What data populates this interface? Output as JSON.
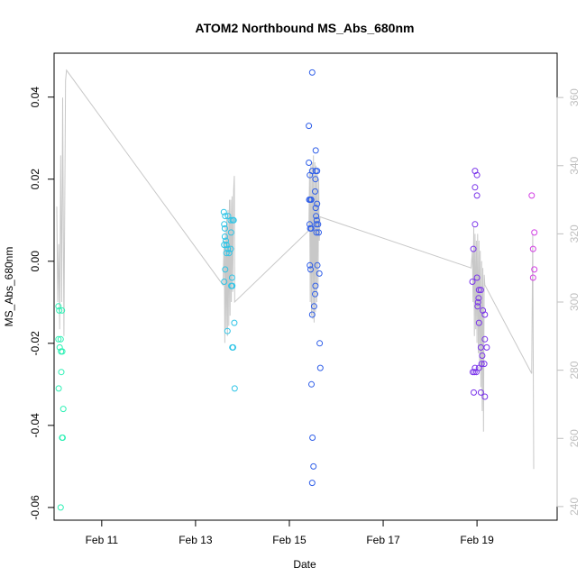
{
  "chart_data": {
    "type": "scatter",
    "title": "ATOM2 Northbound MS_Abs_680nm",
    "xlabel": "Date",
    "ylabel": "MS_Abs_680nm",
    "xlim": [
      "2024-02-09T23:38",
      "2024-02-20T17:00"
    ],
    "ylim": [
      -0.0631,
      0.0507
    ],
    "y2lim": [
      236.0,
      373.0
    ],
    "x_ticks": [
      {
        "date": "2024-02-11",
        "label": "Feb 11"
      },
      {
        "date": "2024-02-13",
        "label": "Feb 13"
      },
      {
        "date": "2024-02-15",
        "label": "Feb 15"
      },
      {
        "date": "2024-02-17",
        "label": "Feb 17"
      },
      {
        "date": "2024-02-19",
        "label": "Feb 19"
      }
    ],
    "y_ticks": [
      -0.06,
      -0.04,
      -0.02,
      0.0,
      0.02,
      0.04
    ],
    "y_tick_labels": [
      "-0.06",
      "-0.04",
      "-0.02",
      "0.00",
      "0.02",
      "0.04"
    ],
    "y2_ticks": [
      240,
      260,
      280,
      300,
      320,
      340,
      360
    ],
    "grid": false,
    "legend": "none",
    "series": [
      {
        "color": "#2cf0b4",
        "points": [
          [
            "2024-02-10T01:50",
            -0.011
          ],
          [
            "2024-02-10T01:50",
            -0.019
          ],
          [
            "2024-02-10T02:15",
            -0.012
          ],
          [
            "2024-02-10T02:30",
            -0.021
          ],
          [
            "2024-02-10T03:00",
            -0.019
          ],
          [
            "2024-02-10T03:10",
            -0.022
          ],
          [
            "2024-02-10T02:00",
            -0.031
          ],
          [
            "2024-02-10T03:40",
            -0.012
          ],
          [
            "2024-02-10T03:50",
            -0.022
          ],
          [
            "2024-02-10T03:20",
            -0.027
          ],
          [
            "2024-02-10T04:20",
            -0.036
          ],
          [
            "2024-02-10T03:45",
            -0.043
          ],
          [
            "2024-02-10T04:00",
            -0.043
          ],
          [
            "2024-02-10T03:00",
            -0.06
          ]
        ]
      },
      {
        "color": "#2ec4e6",
        "points": [
          [
            "2024-02-13T14:30",
            0.012
          ],
          [
            "2024-02-13T14:40",
            0.009
          ],
          [
            "2024-02-13T15:10",
            0.011
          ],
          [
            "2024-02-13T15:00",
            0.008
          ],
          [
            "2024-02-13T15:00",
            0.006
          ],
          [
            "2024-02-13T14:40",
            0.004
          ],
          [
            "2024-02-13T15:30",
            0.005
          ],
          [
            "2024-02-13T15:50",
            0.004
          ],
          [
            "2024-02-13T16:30",
            0.003
          ],
          [
            "2024-02-13T15:50",
            0.002
          ],
          [
            "2024-02-13T17:10",
            0.002
          ],
          [
            "2024-02-13T16:40",
            0.011
          ],
          [
            "2024-02-13T18:00",
            0.01
          ],
          [
            "2024-02-13T19:00",
            0.01
          ],
          [
            "2024-02-13T19:30",
            0.01
          ],
          [
            "2024-02-13T18:10",
            0.007
          ],
          [
            "2024-02-13T18:00",
            0.003
          ],
          [
            "2024-02-13T15:10",
            -0.002
          ],
          [
            "2024-02-13T14:40",
            -0.005
          ],
          [
            "2024-02-13T18:40",
            -0.004
          ],
          [
            "2024-02-13T18:20",
            -0.006
          ],
          [
            "2024-02-13T18:50",
            -0.006
          ],
          [
            "2024-02-13T19:50",
            -0.015
          ],
          [
            "2024-02-13T16:20",
            -0.017
          ],
          [
            "2024-02-13T18:50",
            -0.021
          ],
          [
            "2024-02-13T19:10",
            -0.021
          ],
          [
            "2024-02-13T20:00",
            -0.031
          ]
        ]
      },
      {
        "color": "#2f5ee8",
        "points": [
          [
            "2024-02-15T10:00",
            0.033
          ],
          [
            "2024-02-15T10:00",
            0.024
          ],
          [
            "2024-02-15T10:30",
            0.021
          ],
          [
            "2024-02-15T11:40",
            0.046
          ],
          [
            "2024-02-15T11:40",
            0.022
          ],
          [
            "2024-02-15T13:30",
            0.027
          ],
          [
            "2024-02-15T13:30",
            0.022
          ],
          [
            "2024-02-15T14:10",
            0.022
          ],
          [
            "2024-02-15T13:20",
            0.02
          ],
          [
            "2024-02-15T13:10",
            0.017
          ],
          [
            "2024-02-15T10:10",
            0.015
          ],
          [
            "2024-02-15T10:40",
            0.015
          ],
          [
            "2024-02-15T11:10",
            0.015
          ],
          [
            "2024-02-15T14:10",
            0.014
          ],
          [
            "2024-02-15T13:30",
            0.013
          ],
          [
            "2024-02-15T13:40",
            0.011
          ],
          [
            "2024-02-15T14:00",
            0.01
          ],
          [
            "2024-02-15T13:50",
            0.009
          ],
          [
            "2024-02-15T10:20",
            0.009
          ],
          [
            "2024-02-15T10:40",
            0.008
          ],
          [
            "2024-02-15T14:40",
            0.009
          ],
          [
            "2024-02-15T13:50",
            0.007
          ],
          [
            "2024-02-15T11:10",
            0.008
          ],
          [
            "2024-02-15T15:00",
            0.007
          ],
          [
            "2024-02-15T10:30",
            -0.001
          ],
          [
            "2024-02-15T10:50",
            -0.002
          ],
          [
            "2024-02-15T14:20",
            -0.001
          ],
          [
            "2024-02-15T15:20",
            -0.003
          ],
          [
            "2024-02-15T13:20",
            -0.006
          ],
          [
            "2024-02-15T13:10",
            -0.008
          ],
          [
            "2024-02-15T12:40",
            -0.011
          ],
          [
            "2024-02-15T11:40",
            -0.013
          ],
          [
            "2024-02-15T15:30",
            -0.02
          ],
          [
            "2024-02-15T15:50",
            -0.026
          ],
          [
            "2024-02-15T11:20",
            -0.03
          ],
          [
            "2024-02-15T11:50",
            -0.043
          ],
          [
            "2024-02-15T12:20",
            -0.05
          ],
          [
            "2024-02-15T11:40",
            -0.054
          ]
        ]
      },
      {
        "color": "#7a34ea",
        "points": [
          [
            "2024-02-18T23:00",
            0.022
          ],
          [
            "2024-02-19T00:00",
            0.021
          ],
          [
            "2024-02-18T23:00",
            0.018
          ],
          [
            "2024-02-19T00:00",
            0.016
          ],
          [
            "2024-02-18T23:00",
            0.009
          ],
          [
            "2024-02-18T22:10",
            0.003
          ],
          [
            "2024-02-18T21:40",
            -0.005
          ],
          [
            "2024-02-19T00:00",
            -0.004
          ],
          [
            "2024-02-19T01:00",
            -0.007
          ],
          [
            "2024-02-19T02:00",
            -0.007
          ],
          [
            "2024-02-19T00:50",
            -0.009
          ],
          [
            "2024-02-19T00:30",
            -0.01
          ],
          [
            "2024-02-19T00:20",
            -0.011
          ],
          [
            "2024-02-19T03:00",
            -0.012
          ],
          [
            "2024-02-19T04:00",
            -0.013
          ],
          [
            "2024-02-19T01:00",
            -0.015
          ],
          [
            "2024-02-19T04:00",
            -0.019
          ],
          [
            "2024-02-19T02:00",
            -0.021
          ],
          [
            "2024-02-19T05:00",
            -0.021
          ],
          [
            "2024-02-19T02:40",
            -0.023
          ],
          [
            "2024-02-19T02:20",
            -0.025
          ],
          [
            "2024-02-19T03:40",
            -0.025
          ],
          [
            "2024-02-18T23:00",
            -0.026
          ],
          [
            "2024-02-19T01:00",
            -0.026
          ],
          [
            "2024-02-18T21:50",
            -0.027
          ],
          [
            "2024-02-18T22:40",
            -0.027
          ],
          [
            "2024-02-18T23:40",
            -0.027
          ],
          [
            "2024-02-18T22:20",
            -0.032
          ],
          [
            "2024-02-19T02:00",
            -0.032
          ],
          [
            "2024-02-19T04:00",
            -0.033
          ]
        ]
      },
      {
        "color": "#d23ee4",
        "points": [
          [
            "2024-02-20T04:00",
            0.016
          ],
          [
            "2024-02-20T05:20",
            0.007
          ],
          [
            "2024-02-20T04:40",
            0.003
          ],
          [
            "2024-02-20T05:20",
            -0.002
          ],
          [
            "2024-02-20T04:40",
            -0.004
          ]
        ]
      }
    ],
    "secondary_series": {
      "color": "#c8c8c8",
      "axis": "right",
      "points": [
        [
          "2024-02-10T01:00",
          328
        ],
        [
          "2024-02-10T01:30",
          300
        ],
        [
          "2024-02-10T02:00",
          317
        ],
        [
          "2024-02-10T02:30",
          292
        ],
        [
          "2024-02-10T03:00",
          343
        ],
        [
          "2024-02-10T03:30",
          300
        ],
        [
          "2024-02-10T04:00",
          360
        ],
        [
          "2024-02-10T04:40",
          290
        ],
        [
          "2024-02-10T05:30",
          365
        ],
        [
          "2024-02-10T06:00",
          368
        ],
        [
          "2024-02-13T14:00",
          305
        ],
        [
          "2024-02-13T14:40",
          318
        ],
        [
          "2024-02-13T15:00",
          288
        ],
        [
          "2024-02-13T15:20",
          322
        ],
        [
          "2024-02-13T15:40",
          292
        ],
        [
          "2024-02-13T16:00",
          325
        ],
        [
          "2024-02-13T16:20",
          290
        ],
        [
          "2024-02-13T16:40",
          327
        ],
        [
          "2024-02-13T17:00",
          293
        ],
        [
          "2024-02-13T17:20",
          330
        ],
        [
          "2024-02-13T17:40",
          296
        ],
        [
          "2024-02-13T18:00",
          330
        ],
        [
          "2024-02-13T18:20",
          300
        ],
        [
          "2024-02-13T18:40",
          331
        ],
        [
          "2024-02-13T19:00",
          303
        ],
        [
          "2024-02-13T19:30",
          333
        ],
        [
          "2024-02-13T19:50",
          337
        ],
        [
          "2024-02-13T20:00",
          300
        ],
        [
          "2024-02-15T10:00",
          321
        ],
        [
          "2024-02-15T10:20",
          338
        ],
        [
          "2024-02-15T10:40",
          300
        ],
        [
          "2024-02-15T11:00",
          340
        ],
        [
          "2024-02-15T11:20",
          296
        ],
        [
          "2024-02-15T11:40",
          341
        ],
        [
          "2024-02-15T12:00",
          295
        ],
        [
          "2024-02-15T12:20",
          343
        ],
        [
          "2024-02-15T12:40",
          294
        ],
        [
          "2024-02-15T13:00",
          341
        ],
        [
          "2024-02-15T13:20",
          297
        ],
        [
          "2024-02-15T13:40",
          340
        ],
        [
          "2024-02-15T14:00",
          300
        ],
        [
          "2024-02-15T14:20",
          338
        ],
        [
          "2024-02-15T14:40",
          305
        ],
        [
          "2024-02-15T15:00",
          336
        ],
        [
          "2024-02-15T15:20",
          318
        ],
        [
          "2024-02-15T15:40",
          325
        ],
        [
          "2024-02-18T21:00",
          310
        ],
        [
          "2024-02-18T21:40",
          315
        ],
        [
          "2024-02-18T22:00",
          300
        ],
        [
          "2024-02-18T22:20",
          322
        ],
        [
          "2024-02-18T22:40",
          290
        ],
        [
          "2024-02-18T23:00",
          320
        ],
        [
          "2024-02-18T23:20",
          292
        ],
        [
          "2024-02-18T23:40",
          318
        ],
        [
          "2024-02-19T00:00",
          288
        ],
        [
          "2024-02-19T00:20",
          320
        ],
        [
          "2024-02-19T00:40",
          285
        ],
        [
          "2024-02-19T01:00",
          318
        ],
        [
          "2024-02-19T01:20",
          280
        ],
        [
          "2024-02-19T01:40",
          315
        ],
        [
          "2024-02-19T02:00",
          275
        ],
        [
          "2024-02-19T02:20",
          312
        ],
        [
          "2024-02-19T02:40",
          268
        ],
        [
          "2024-02-19T03:00",
          310
        ],
        [
          "2024-02-19T03:20",
          262
        ],
        [
          "2024-02-19T03:40",
          308
        ],
        [
          "2024-02-19T04:00",
          305
        ],
        [
          "2024-02-20T04:00",
          279
        ],
        [
          "2024-02-20T04:30",
          320
        ],
        [
          "2024-02-20T05:00",
          251
        ]
      ]
    }
  }
}
